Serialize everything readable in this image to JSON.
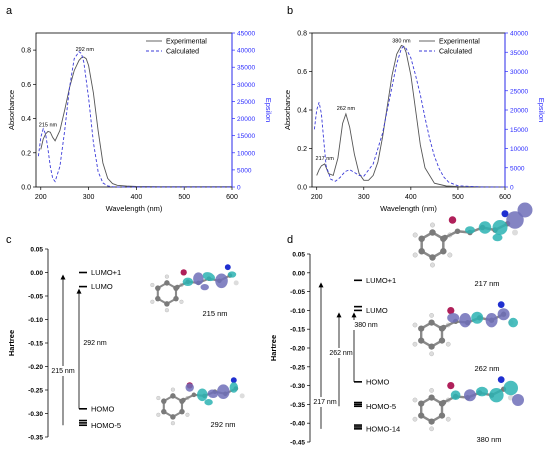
{
  "panels": {
    "a": "a",
    "b": "b",
    "c": "c",
    "d": "d"
  },
  "colors": {
    "experimental": "#555555",
    "calculated": "#3b3bd9",
    "epsilon_axis": "#2a2aff",
    "axis": "#000000"
  },
  "icons": {
    "molecule": "molecular-orbital-rendering"
  },
  "chart_data": [
    {
      "id": "a",
      "type": "line",
      "xlabel": "Wavelength (nm)",
      "ylabel": "Absorbance",
      "y2label": "Epsilon",
      "xlim": [
        190,
        600
      ],
      "ylim": [
        0,
        0.9
      ],
      "y2lim": [
        0,
        45000
      ],
      "xticks": [
        200,
        300,
        400,
        500,
        600
      ],
      "yticks": [
        0.0,
        0.2,
        0.4,
        0.6,
        0.8
      ],
      "ytick_labels": [
        "0.0",
        "0.2",
        "0.4",
        "0.6",
        "0.8"
      ],
      "y2ticks": [
        0,
        5000,
        10000,
        15000,
        20000,
        25000,
        30000,
        35000,
        40000,
        45000
      ],
      "legend": "top-right",
      "annotations": [
        {
          "text": "215 nm",
          "x": 215,
          "y": 0.33
        },
        {
          "text": "292 nm",
          "x": 292,
          "y": 0.77
        }
      ],
      "series": [
        {
          "name": "Experimental",
          "axis": "left",
          "style": "solid",
          "x": [
            200,
            205,
            210,
            215,
            220,
            225,
            230,
            240,
            250,
            260,
            270,
            280,
            285,
            290,
            295,
            300,
            310,
            320,
            330,
            340,
            350,
            360,
            380,
            400,
            450,
            500,
            550,
            600
          ],
          "y": [
            0.22,
            0.28,
            0.31,
            0.325,
            0.32,
            0.29,
            0.27,
            0.33,
            0.45,
            0.58,
            0.68,
            0.74,
            0.755,
            0.76,
            0.75,
            0.71,
            0.55,
            0.33,
            0.14,
            0.05,
            0.02,
            0.01,
            0.005,
            0.003,
            0.002,
            0.002,
            0.002,
            0.002
          ]
        },
        {
          "name": "Calculated",
          "axis": "right",
          "style": "dashed",
          "x": [
            195,
            200,
            205,
            210,
            215,
            220,
            225,
            230,
            240,
            250,
            260,
            270,
            280,
            285,
            290,
            300,
            310,
            320,
            330,
            340,
            350,
            360,
            400,
            450,
            500,
            550,
            600
          ],
          "y": [
            9000,
            14500,
            17000,
            15500,
            11000,
            6000,
            2500,
            1600,
            6000,
            16500,
            29000,
            37500,
            39500,
            39000,
            36500,
            26000,
            13000,
            4500,
            1200,
            300,
            100,
            0,
            0,
            0,
            0,
            0,
            0
          ]
        }
      ]
    },
    {
      "id": "b",
      "type": "line",
      "xlabel": "Wavelength (nm)",
      "ylabel": "Absorbance",
      "y2label": "Epsilon",
      "xlim": [
        190,
        600
      ],
      "ylim": [
        0,
        0.8
      ],
      "y2lim": [
        0,
        40000
      ],
      "xticks": [
        200,
        300,
        400,
        500,
        600
      ],
      "yticks": [
        0.0,
        0.2,
        0.4,
        0.6,
        0.8
      ],
      "ytick_labels": [
        "0.0",
        "0.2",
        "0.4",
        "0.6",
        "0.8"
      ],
      "y2ticks": [
        0,
        5000,
        10000,
        15000,
        20000,
        25000,
        30000,
        35000,
        40000
      ],
      "legend": "top-right",
      "annotations": [
        {
          "text": "217 nm",
          "x": 217,
          "y": 0.12
        },
        {
          "text": "262 nm",
          "x": 262,
          "y": 0.38
        },
        {
          "text": "380 nm",
          "x": 380,
          "y": 0.73
        }
      ],
      "series": [
        {
          "name": "Experimental",
          "axis": "left",
          "style": "solid",
          "x": [
            200,
            205,
            210,
            217,
            225,
            235,
            245,
            255,
            262,
            270,
            280,
            290,
            300,
            310,
            320,
            330,
            340,
            350,
            360,
            370,
            380,
            385,
            390,
            400,
            410,
            420,
            430,
            450,
            475,
            500,
            550,
            600
          ],
          "y": [
            0.06,
            0.09,
            0.11,
            0.12,
            0.07,
            0.06,
            0.15,
            0.33,
            0.38,
            0.31,
            0.17,
            0.07,
            0.035,
            0.035,
            0.06,
            0.13,
            0.26,
            0.42,
            0.58,
            0.69,
            0.735,
            0.73,
            0.7,
            0.58,
            0.4,
            0.22,
            0.1,
            0.02,
            0.005,
            0.002,
            0.001,
            0.0
          ]
        },
        {
          "name": "Calculated",
          "axis": "right",
          "style": "dashed",
          "x": [
            195,
            200,
            205,
            210,
            215,
            220,
            230,
            240,
            250,
            260,
            270,
            280,
            290,
            300,
            320,
            340,
            360,
            370,
            380,
            385,
            390,
            400,
            410,
            420,
            430,
            440,
            450,
            460,
            470,
            480,
            500,
            550,
            600
          ],
          "y": [
            15000,
            20000,
            22000,
            19000,
            12000,
            5500,
            2000,
            1500,
            2500,
            4000,
            4500,
            3800,
            3000,
            2800,
            6000,
            14000,
            26000,
            32000,
            36000,
            36500,
            36000,
            33500,
            29000,
            24000,
            18000,
            12500,
            8000,
            4800,
            2600,
            1300,
            300,
            0,
            0
          ]
        }
      ]
    },
    {
      "id": "c",
      "type": "energy-level-diagram",
      "ylabel": "Hartree",
      "ylim": [
        -0.35,
        0.05
      ],
      "yticks": [
        0.05,
        0.0,
        -0.05,
        -0.1,
        -0.15,
        -0.2,
        -0.25,
        -0.3,
        -0.35
      ],
      "ytick_labels": [
        "0.05",
        "0.00",
        "-0.05",
        "-0.10",
        "-0.15",
        "-0.20",
        "-0.25",
        "-0.30",
        "-0.35"
      ],
      "levels": [
        {
          "label": "LUMO+1",
          "energy": 0.0
        },
        {
          "label": "LUMO",
          "energy": -0.03
        },
        {
          "label": "HOMO",
          "energy": -0.29
        },
        {
          "label": "",
          "energy": -0.315
        },
        {
          "label": "",
          "energy": -0.32
        },
        {
          "label": "HOMO-5",
          "energy": -0.325
        }
      ],
      "transitions": [
        {
          "label": "215 nm",
          "from": -0.325,
          "to": 0.0
        },
        {
          "label": "292 nm",
          "from": -0.29,
          "to": -0.03
        }
      ],
      "orbital_captions": [
        "215 nm",
        "292 nm"
      ]
    },
    {
      "id": "d",
      "type": "energy-level-diagram",
      "ylabel": "Hartree",
      "ylim": [
        -0.45,
        0.05
      ],
      "yticks": [
        0.05,
        0.0,
        -0.05,
        -0.1,
        -0.15,
        -0.2,
        -0.25,
        -0.3,
        -0.35,
        -0.4,
        -0.45
      ],
      "ytick_labels": [
        "0.05",
        "0.00",
        "-0.05",
        "-0.10",
        "-0.15",
        "-0.20",
        "-0.25",
        "-0.30",
        "-0.35",
        "-0.40",
        "-0.45"
      ],
      "levels": [
        {
          "label": "LUMO+1",
          "energy": -0.02
        },
        {
          "label": "",
          "energy": -0.09
        },
        {
          "label": "LUMO",
          "energy": -0.1
        },
        {
          "label": "HOMO",
          "energy": -0.29
        },
        {
          "label": "",
          "energy": -0.345
        },
        {
          "label": "",
          "energy": -0.35
        },
        {
          "label": "HOMO-5",
          "energy": -0.355
        },
        {
          "label": "",
          "energy": -0.405
        },
        {
          "label": "",
          "energy": -0.41
        },
        {
          "label": "HOMO-14",
          "energy": -0.415
        }
      ],
      "transitions": [
        {
          "label": "217 nm",
          "from": -0.415,
          "to": -0.02
        },
        {
          "label": "262 nm",
          "from": -0.355,
          "to": -0.1
        },
        {
          "label": "380 nm",
          "from": -0.29,
          "to": -0.1
        }
      ],
      "orbital_captions": [
        "217 nm",
        "262 nm",
        "380 nm"
      ]
    }
  ]
}
